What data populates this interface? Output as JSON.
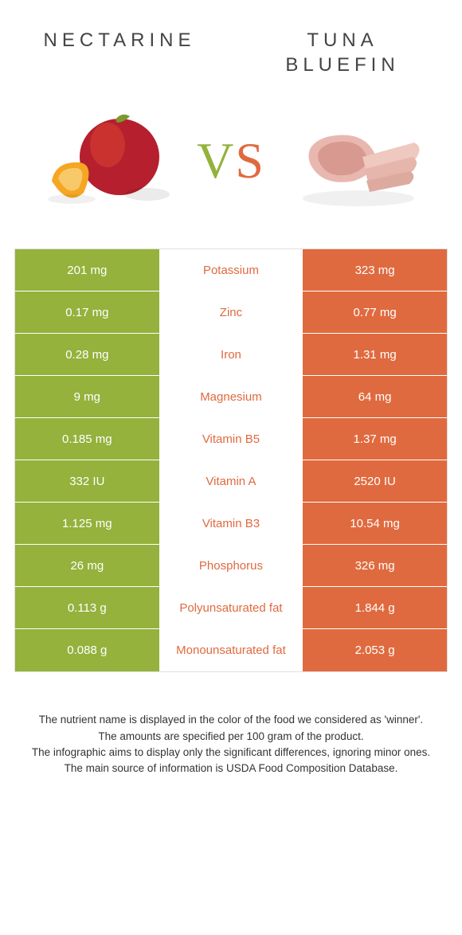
{
  "header": {
    "left": "Nectarine",
    "right_line1": "Tuna",
    "right_line2": "Bluefin"
  },
  "vs": {
    "v": "V",
    "s": "S"
  },
  "colors": {
    "left": "#94b23c",
    "right": "#e06a3f",
    "mid_label_left": "#94b23c",
    "mid_label_right": "#e06a3f"
  },
  "rows": [
    {
      "left": "201 mg",
      "label": "Potassium",
      "right": "323 mg",
      "winner": "right"
    },
    {
      "left": "0.17 mg",
      "label": "Zinc",
      "right": "0.77 mg",
      "winner": "right"
    },
    {
      "left": "0.28 mg",
      "label": "Iron",
      "right": "1.31 mg",
      "winner": "right"
    },
    {
      "left": "9 mg",
      "label": "Magnesium",
      "right": "64 mg",
      "winner": "right"
    },
    {
      "left": "0.185 mg",
      "label": "Vitamin B5",
      "right": "1.37 mg",
      "winner": "right"
    },
    {
      "left": "332 IU",
      "label": "Vitamin A",
      "right": "2520 IU",
      "winner": "right"
    },
    {
      "left": "1.125 mg",
      "label": "Vitamin B3",
      "right": "10.54 mg",
      "winner": "right"
    },
    {
      "left": "26 mg",
      "label": "Phosphorus",
      "right": "326 mg",
      "winner": "right"
    },
    {
      "left": "0.113 g",
      "label": "Polyunsaturated fat",
      "right": "1.844 g",
      "winner": "right"
    },
    {
      "left": "0.088 g",
      "label": "Monounsaturated fat",
      "right": "2.053 g",
      "winner": "right"
    }
  ],
  "footer": {
    "l1": "The nutrient name is displayed in the color of the food we considered as 'winner'.",
    "l2": "The amounts are specified per 100 gram of the product.",
    "l3": "The infographic aims to display only the significant differences, ignoring minor ones.",
    "l4": "The main source of information is USDA Food Composition Database."
  }
}
